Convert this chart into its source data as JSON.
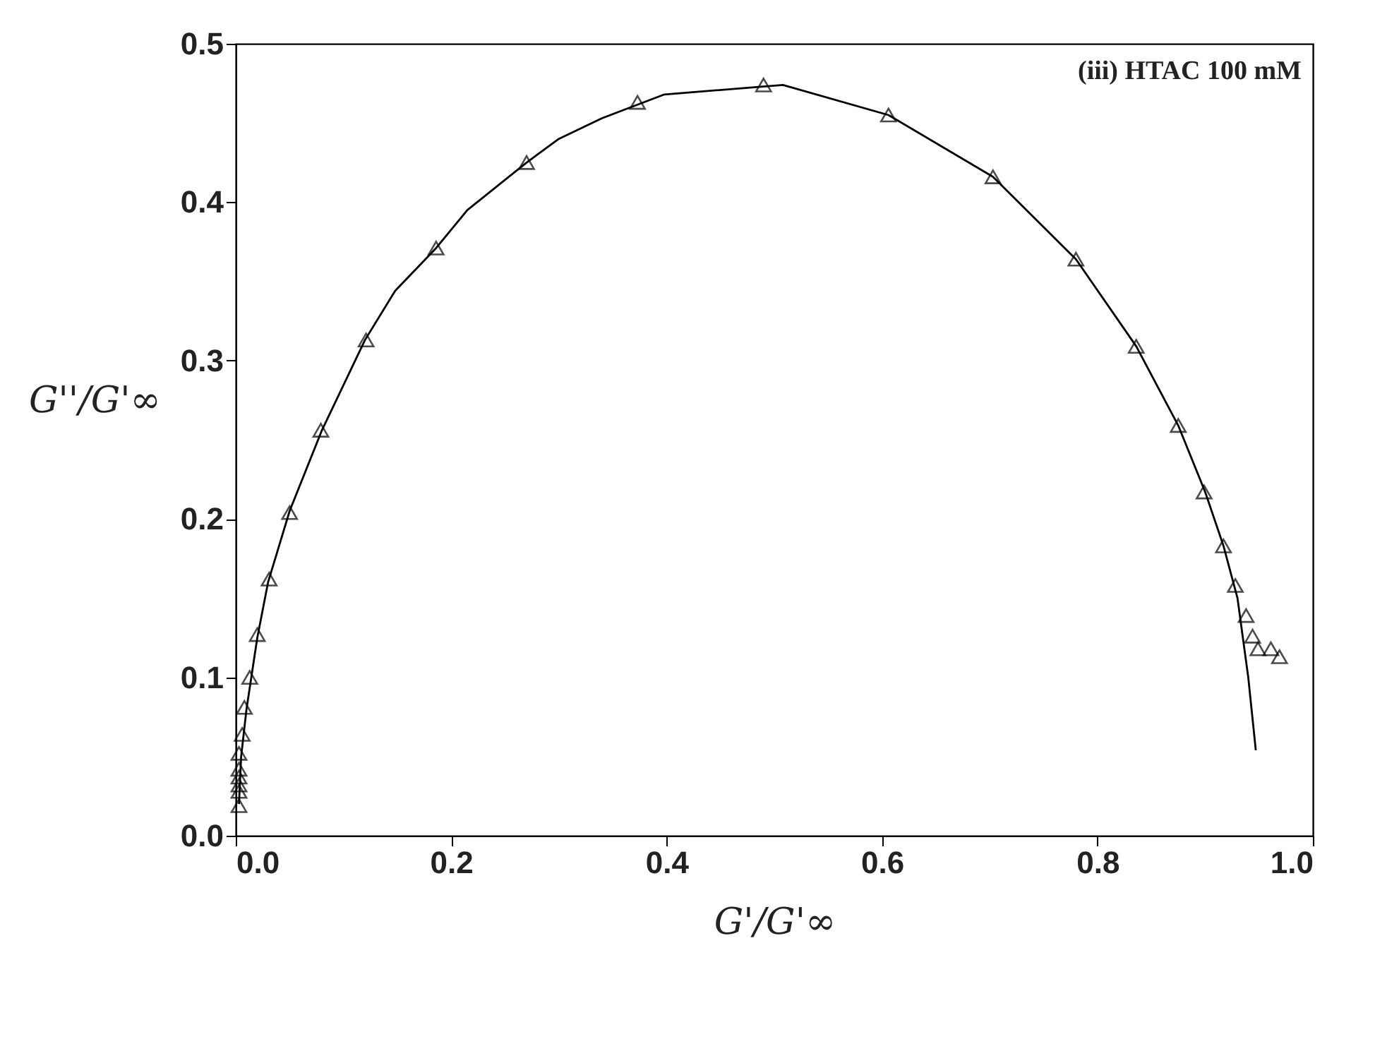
{
  "chart_data": {
    "type": "scatter",
    "xlabel": "G'/G'∞",
    "ylabel": "G''/G'∞",
    "annotations": [
      "(iii) HTAC 100 mM"
    ],
    "xlim": [
      0,
      1.0
    ],
    "ylim": [
      0,
      0.5
    ],
    "xticks": [
      {
        "value": 0,
        "label": "0.0"
      },
      0.2,
      0.4,
      0.6,
      0.8,
      {
        "value": 1,
        "label": "1.0"
      }
    ],
    "yticks": [
      {
        "value": 0,
        "label": "0.0"
      },
      0.1,
      0.2,
      0.3,
      0.4,
      0.5
    ],
    "grid": false,
    "series": [
      {
        "color": "#000000",
        "marker": "triangle",
        "x": [
          0.003,
          0.003,
          0.003,
          0.003,
          0.003,
          0.003,
          0.006,
          0.008,
          0.013,
          0.02,
          0.031,
          0.05,
          0.079,
          0.121,
          0.186,
          0.27,
          0.373,
          0.49,
          0.606,
          0.703,
          0.78,
          0.836,
          0.875,
          0.899,
          0.917,
          0.928,
          0.938,
          0.944,
          0.949,
          0.961,
          0.969
        ],
        "values": [
          0.019,
          0.028,
          0.032,
          0.037,
          0.042,
          0.052,
          0.064,
          0.081,
          0.1,
          0.127,
          0.162,
          0.204,
          0.256,
          0.313,
          0.371,
          0.425,
          0.463,
          0.474,
          0.455,
          0.416,
          0.364,
          0.309,
          0.259,
          0.217,
          0.183,
          0.158,
          0.139,
          0.126,
          0.118,
          0.118,
          0.113
        ]
      },
      {
        "type": "line",
        "color": "#000000",
        "marker": "none",
        "line_style": "solid",
        "x": [
          0.003,
          0.005,
          0.01,
          0.02,
          0.03,
          0.05,
          0.08,
          0.12,
          0.148,
          0.186,
          0.215,
          0.27,
          0.3,
          0.34,
          0.398,
          0.508,
          0.606,
          0.703,
          0.78,
          0.836,
          0.875,
          0.9,
          0.917,
          0.93,
          0.94,
          0.947
        ],
        "values": [
          0.02,
          0.05,
          0.08,
          0.125,
          0.16,
          0.205,
          0.256,
          0.313,
          0.344,
          0.371,
          0.395,
          0.425,
          0.44,
          0.453,
          0.468,
          0.474,
          0.455,
          0.416,
          0.364,
          0.309,
          0.259,
          0.217,
          0.183,
          0.15,
          0.1,
          0.054
        ]
      }
    ]
  }
}
